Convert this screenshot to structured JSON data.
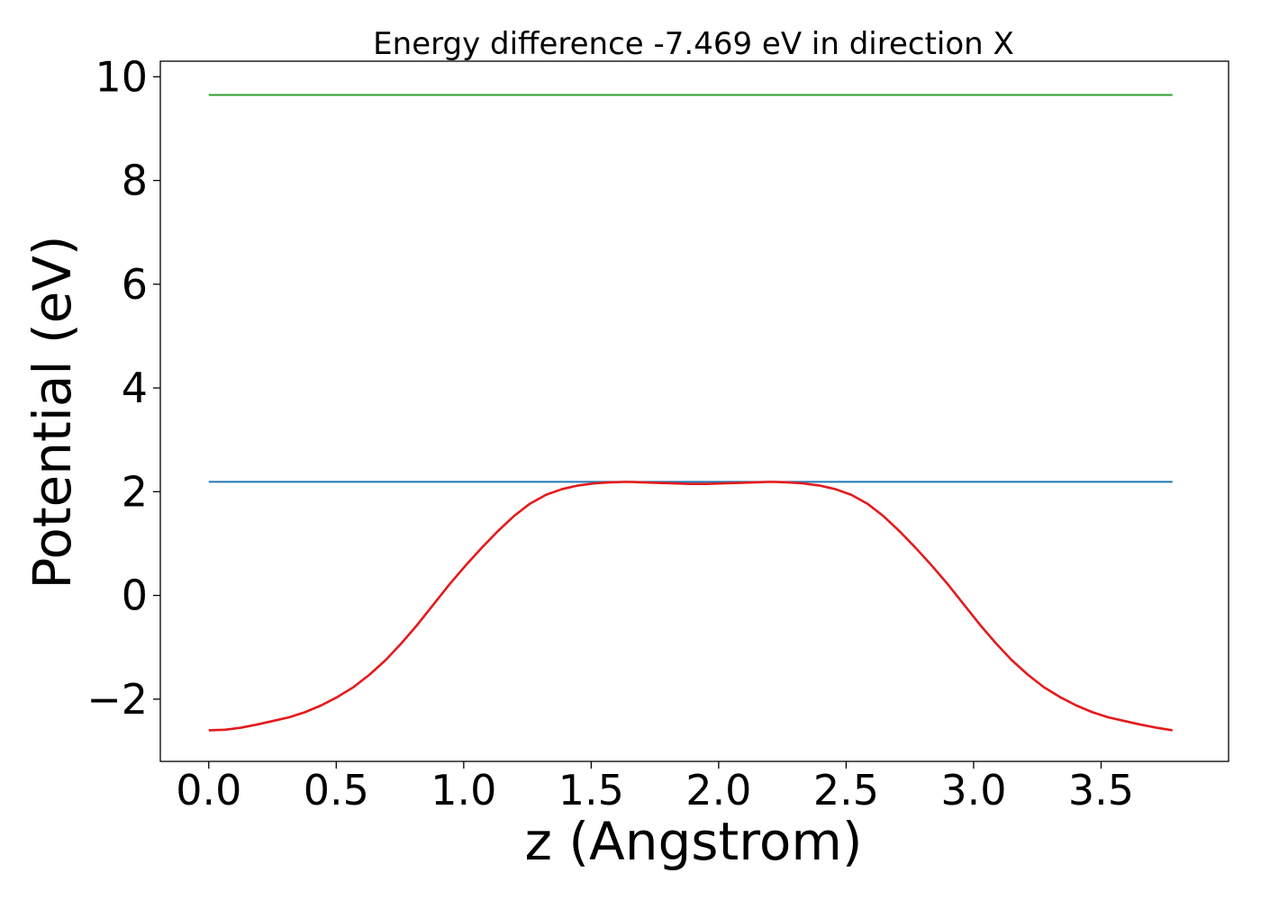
{
  "chart_data": {
    "type": "line",
    "title": "Energy difference -7.469 eV in direction X",
    "xlabel": "z (Angstrom)",
    "ylabel": "Potential (eV)",
    "xlim": [
      -0.19,
      4.0
    ],
    "ylim": [
      -3.2,
      10.3
    ],
    "xticks": [
      0.0,
      0.5,
      1.0,
      1.5,
      2.0,
      2.5,
      3.0,
      3.5
    ],
    "xtick_labels": [
      "0.0",
      "0.5",
      "1.0",
      "1.5",
      "2.0",
      "2.5",
      "3.0",
      "3.5"
    ],
    "yticks": [
      -2,
      0,
      2,
      4,
      6,
      8,
      10
    ],
    "ytick_labels": [
      "−2",
      "0",
      "2",
      "4",
      "6",
      "8",
      "10"
    ],
    "grid": false,
    "series": [
      {
        "color": "#2ca02c",
        "x": [
          0.0,
          3.78
        ],
        "y": [
          9.65,
          9.65
        ]
      },
      {
        "color": "#1f77b4",
        "x": [
          0.0,
          3.78
        ],
        "y": [
          2.19,
          2.19
        ]
      },
      {
        "color": "#e41a1c",
        "x": [
          0.0,
          0.063,
          0.126,
          0.189,
          0.252,
          0.315,
          0.378,
          0.441,
          0.504,
          0.567,
          0.63,
          0.693,
          0.756,
          0.819,
          0.882,
          0.945,
          1.008,
          1.071,
          1.134,
          1.197,
          1.26,
          1.323,
          1.386,
          1.449,
          1.512,
          1.575,
          1.638,
          1.701,
          1.764,
          1.827,
          1.89,
          1.953,
          2.016,
          2.079,
          2.142,
          2.205,
          2.268,
          2.331,
          2.394,
          2.457,
          2.52,
          2.583,
          2.646,
          2.709,
          2.772,
          2.835,
          2.898,
          2.961,
          3.024,
          3.087,
          3.15,
          3.213,
          3.276,
          3.339,
          3.402,
          3.465,
          3.528,
          3.591,
          3.654,
          3.717,
          3.78
        ],
        "y": [
          -2.6,
          -2.59,
          -2.55,
          -2.49,
          -2.42,
          -2.35,
          -2.25,
          -2.12,
          -1.96,
          -1.77,
          -1.53,
          -1.25,
          -0.92,
          -0.56,
          -0.17,
          0.22,
          0.58,
          0.92,
          1.24,
          1.53,
          1.77,
          1.94,
          2.05,
          2.12,
          2.16,
          2.18,
          2.19,
          2.18,
          2.17,
          2.16,
          2.15,
          2.15,
          2.16,
          2.17,
          2.18,
          2.19,
          2.18,
          2.16,
          2.12,
          2.05,
          1.94,
          1.77,
          1.53,
          1.24,
          0.92,
          0.58,
          0.22,
          -0.17,
          -0.56,
          -0.92,
          -1.25,
          -1.53,
          -1.77,
          -1.96,
          -2.12,
          -2.25,
          -2.35,
          -2.42,
          -2.49,
          -2.55,
          -2.6
        ]
      }
    ]
  }
}
